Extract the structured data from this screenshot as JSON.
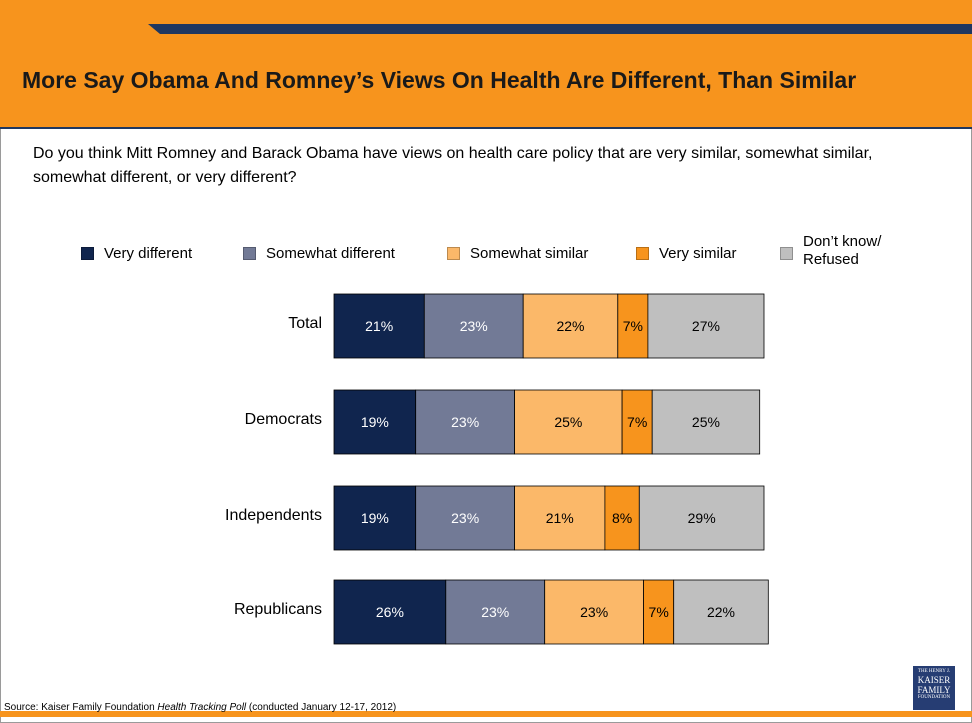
{
  "title": "More Say Obama And Romney’s Views On Health Are Different, Than Similar",
  "question": "Do you think Mitt Romney and Barack Obama have views on health care policy that are very similar, somewhat similar, somewhat different, or very different?",
  "source": {
    "prefix": "Source: Kaiser Family Foundation ",
    "italic": "Health Tracking Poll",
    "suffix": " (conducted January 12-17, 2012)"
  },
  "logo": {
    "line1": "THE HENRY J.",
    "line2": "KAISER",
    "line3": "FAMILY",
    "line4": "FOUNDATION"
  },
  "colors": {
    "very_different": "#10254e",
    "somewhat_different": "#727a96",
    "somewhat_similar": "#fbb869",
    "very_similar": "#f7941d",
    "dont_know": "#bfbfbf",
    "header_orange": "#f7941d",
    "header_navy": "#1f3760"
  },
  "chart_data": {
    "type": "bar",
    "orientation": "horizontal",
    "stacked": true,
    "categories": [
      "Total",
      "Democrats",
      "Independents",
      "Republicans"
    ],
    "series": [
      {
        "name": "Very different",
        "values": [
          21,
          19,
          19,
          26
        ],
        "labels": [
          "21%",
          "19%",
          "19%",
          "26%"
        ],
        "color": "#10254e",
        "label_color": "#ffffff"
      },
      {
        "name": "Somewhat different",
        "values": [
          23,
          23,
          23,
          23
        ],
        "labels": [
          "23%",
          "23%",
          "23%",
          "23%"
        ],
        "color": "#727a96",
        "label_color": "#ffffff"
      },
      {
        "name": "Somewhat similar",
        "values": [
          22,
          25,
          21,
          23
        ],
        "labels": [
          "22%",
          "25%",
          "21%",
          "23%"
        ],
        "color": "#fbb869",
        "label_color": "#000000"
      },
      {
        "name": "Very similar",
        "values": [
          7,
          7,
          8,
          7
        ],
        "labels": [
          "7%",
          "7%",
          "8%",
          "7%"
        ],
        "color": "#f7941d",
        "label_color": "#000000"
      },
      {
        "name": "Don’t know/\nRefused",
        "values": [
          27,
          25,
          29,
          22
        ],
        "labels": [
          "27%",
          "25%",
          "29%",
          "22%"
        ],
        "color": "#bfbfbf",
        "label_color": "#000000"
      }
    ],
    "xlim": [
      0,
      100
    ],
    "legend_position": "top",
    "grid": false
  }
}
